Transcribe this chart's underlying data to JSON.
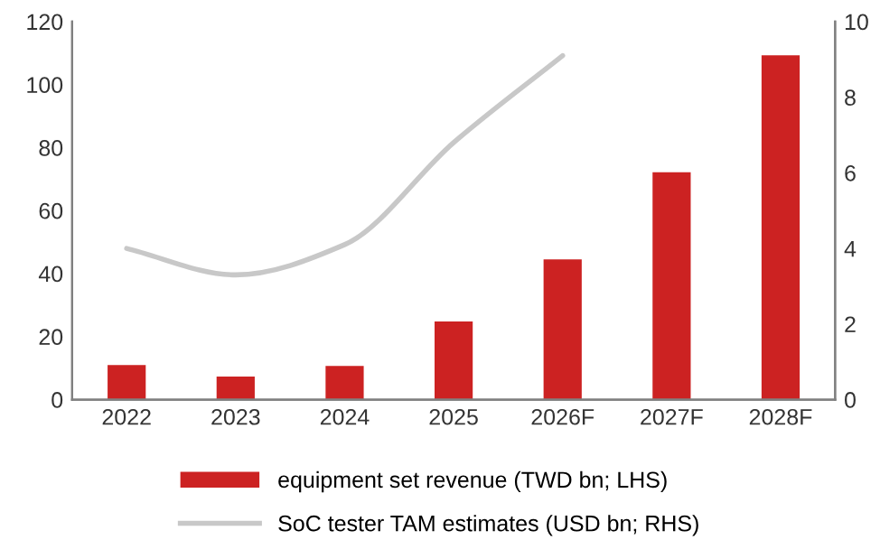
{
  "chart_data": {
    "type": "bar",
    "categories": [
      "2022",
      "2023",
      "2024",
      "2025",
      "2026F",
      "2027F",
      "2028F"
    ],
    "series": [
      {
        "name": "equipment set revenue (TWD bn; LHS)",
        "color": "#cc2222",
        "values": [
          11,
          7.3,
          10.7,
          24.8,
          44.5,
          72.2,
          109.3
        ]
      },
      {
        "name": "SoC tester TAM estimates (USD bn; RHS)",
        "color": "#c8c8c8",
        "type": "line",
        "axis": "y2",
        "values": [
          4.0,
          3.3,
          4.1,
          6.8,
          9.1,
          null,
          null
        ]
      }
    ],
    "ylim": [
      0,
      120
    ],
    "yticks": [
      0,
      20,
      40,
      60,
      80,
      100,
      120
    ],
    "y2lim": [
      0,
      10
    ],
    "y2ticks": [
      0,
      2,
      4,
      6,
      8,
      10
    ],
    "grid": false,
    "legend": "bottom"
  }
}
